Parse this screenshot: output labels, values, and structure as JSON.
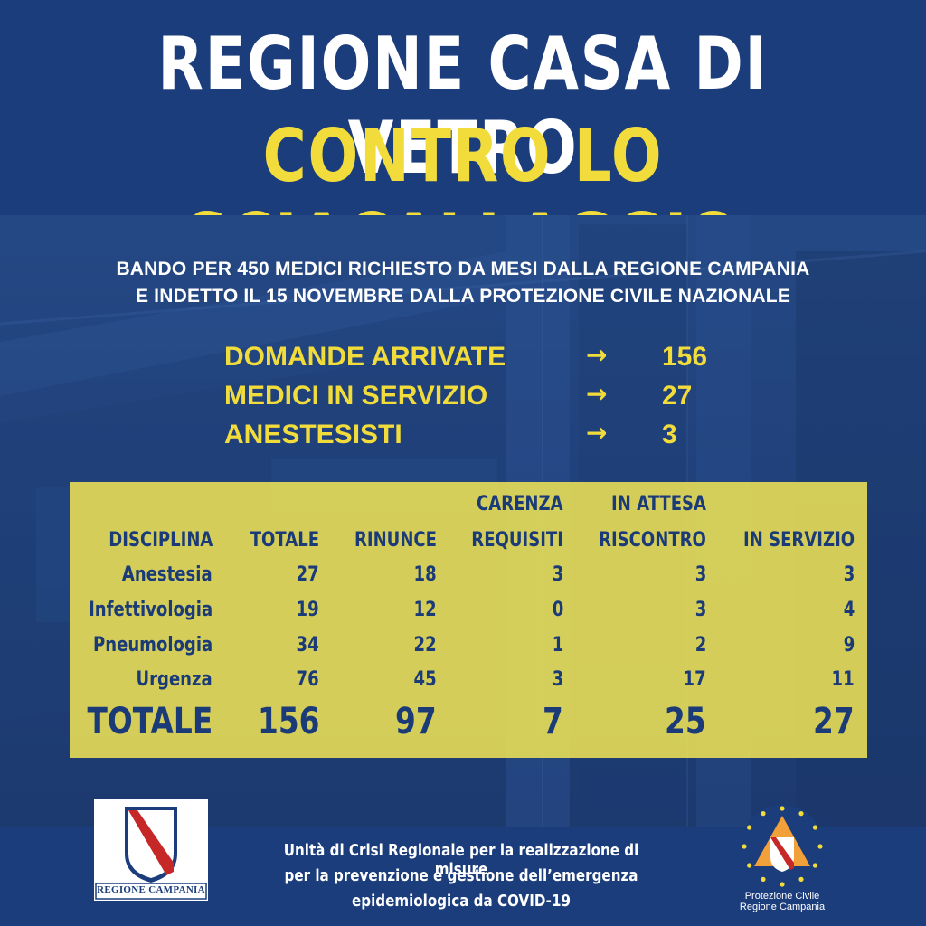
{
  "header": {
    "line1": "REGIONE CASA DI VETRO",
    "line2": "CONTRO LO SCIACALLAGGIO"
  },
  "subtitle": {
    "line1": "BANDO PER 450 MEDICI RICHIESTO DA MESI DALLA REGIONE CAMPANIA",
    "line2": "E INDETTO IL 15 NOVEMBRE DALLA PROTEZIONE CIVILE NAZIONALE"
  },
  "summary": [
    {
      "label": "DOMANDE ARRIVATE",
      "arrow": "→",
      "value": "156"
    },
    {
      "label": "MEDICI IN SERVIZIO",
      "arrow": "→",
      "value": "27"
    },
    {
      "label": "ANESTESISTI",
      "arrow": "→",
      "value": "3"
    }
  ],
  "table": {
    "headers": [
      {
        "top": "",
        "bottom": "DISCIPLINA"
      },
      {
        "top": "",
        "bottom": "TOTALE"
      },
      {
        "top": "",
        "bottom": "RINUNCE"
      },
      {
        "top": "CARENZA",
        "bottom": "REQUISITI"
      },
      {
        "top": "IN ATTESA",
        "bottom": "RISCONTRO"
      },
      {
        "top": "",
        "bottom": "IN SERVIZIO"
      }
    ],
    "rows": [
      [
        "Anestesia",
        "27",
        "18",
        "3",
        "3",
        "3"
      ],
      [
        "Infettivologia",
        "19",
        "12",
        "0",
        "3",
        "4"
      ],
      [
        "Pneumologia",
        "34",
        "22",
        "1",
        "2",
        "9"
      ],
      [
        "Urgenza",
        "76",
        "45",
        "3",
        "17",
        "11"
      ]
    ],
    "total": [
      "TOTALE",
      "156",
      "97",
      "7",
      "25",
      "27"
    ]
  },
  "footer": {
    "line1": "Unità di Crisi Regionale per la realizzazione di misure",
    "line2": "per la prevenzione e gestione dell’emergenza",
    "line3": "epidemiologica da COVID-19"
  },
  "logos": {
    "region": {
      "text": "REGIONE CAMPANIA",
      "icon": "region-campania-crest"
    },
    "civil_protection": {
      "line1": "Protezione Civile",
      "line2": "Regione Campania",
      "icon": "protezione-civile-emblem"
    }
  },
  "colors": {
    "navy": "#1b3d7c",
    "yellow": "#f1dc3c",
    "table_bg": "#e8dd56",
    "table_text": "#1a3a78",
    "crest_red": "#c62828"
  }
}
